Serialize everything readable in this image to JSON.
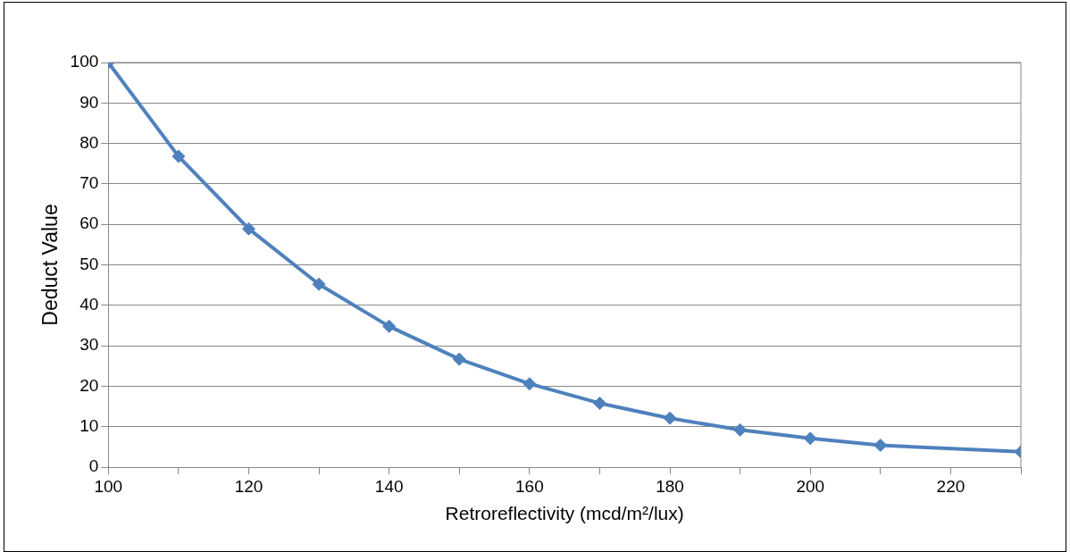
{
  "chart_data": {
    "type": "line",
    "xlabel": "Retroreflectivity (mcd/m²/lux)",
    "ylabel": "Deduct Value",
    "x": [
      100,
      110,
      120,
      130,
      140,
      150,
      160,
      170,
      180,
      190,
      200,
      210,
      230
    ],
    "series": [
      {
        "color": "#4f81bd",
        "values": [
          100,
          76.8,
          58.9,
          45.2,
          34.8,
          26.7,
          20.6,
          15.8,
          12.1,
          9.2,
          7.1,
          5.4,
          3.8
        ]
      }
    ],
    "xlim": [
      100,
      230
    ],
    "xticks": [
      100,
      {
        "value": 110,
        "label": null
      },
      120,
      {
        "value": 130,
        "label": null
      },
      140,
      {
        "value": 150,
        "label": null
      },
      160,
      {
        "value": 170,
        "label": null
      },
      180,
      {
        "value": 190,
        "label": null
      },
      200,
      {
        "value": 210,
        "label": null
      },
      220,
      {
        "value": 230,
        "label": null
      }
    ],
    "ylim": [
      0,
      100
    ],
    "yticks": [
      0,
      10,
      20,
      30,
      40,
      50,
      60,
      70,
      80,
      90,
      100
    ],
    "grid": "y",
    "legend": false,
    "marker": "diamond",
    "line_style": "solid"
  }
}
